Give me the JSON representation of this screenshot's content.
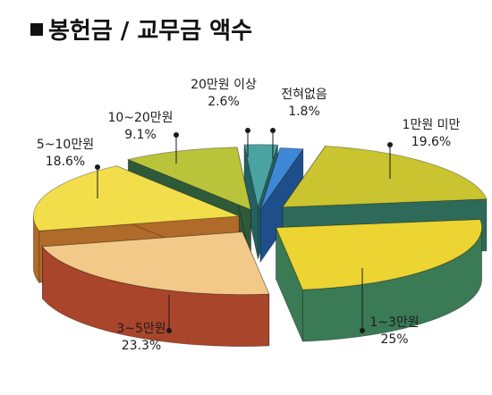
{
  "title": "봉헌금 / 교무금 액수",
  "chart_data": {
    "type": "pie",
    "style": "3d-exploded",
    "slices": [
      {
        "label": "1만원 미만",
        "value": 19.6,
        "value_text": "19.6%",
        "top": "#c9c42f",
        "side": "#2e6a5a"
      },
      {
        "label": "1~3만원",
        "value": 25.0,
        "value_text": "25%",
        "top": "#ecd433",
        "side": "#3a7a55"
      },
      {
        "label": "3~5만원",
        "value": 23.3,
        "value_text": "23.3%",
        "top": "#f3c98a",
        "side": "#a8452a"
      },
      {
        "label": "5~10만원",
        "value": 18.6,
        "value_text": "18.6%",
        "top": "#f2de4a",
        "side": "#b06a2a"
      },
      {
        "label": "10~20만원",
        "value": 9.1,
        "value_text": "9.1%",
        "top": "#b9c43a",
        "side": "#2f5a3a"
      },
      {
        "label": "20만원 이상",
        "value": 2.6,
        "value_text": "2.6%",
        "top": "#4aa3a0",
        "side": "#256060"
      },
      {
        "label": "전혀없음",
        "value": 1.8,
        "value_text": "1.8%",
        "top": "#3f88d6",
        "side": "#1f4f8a"
      }
    ]
  }
}
